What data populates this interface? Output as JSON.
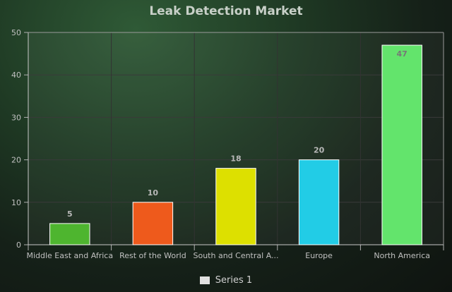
{
  "chart_data": {
    "type": "bar",
    "title": "Leak Detection Market",
    "categories": [
      "Middle East and Africa",
      "Rest of the World",
      "South and Central A...",
      "Europe",
      "North America"
    ],
    "series": [
      {
        "name": "Series 1",
        "values": [
          5,
          10,
          18,
          20,
          47
        ]
      }
    ],
    "colors": [
      "#4eb52f",
      "#ee5a1c",
      "#dde000",
      "#22cce6",
      "#63e46c"
    ],
    "ylim": [
      0,
      50
    ],
    "yticks": [
      0,
      10,
      20,
      30,
      40,
      50
    ],
    "grid": true,
    "legend_position": "bottom"
  }
}
